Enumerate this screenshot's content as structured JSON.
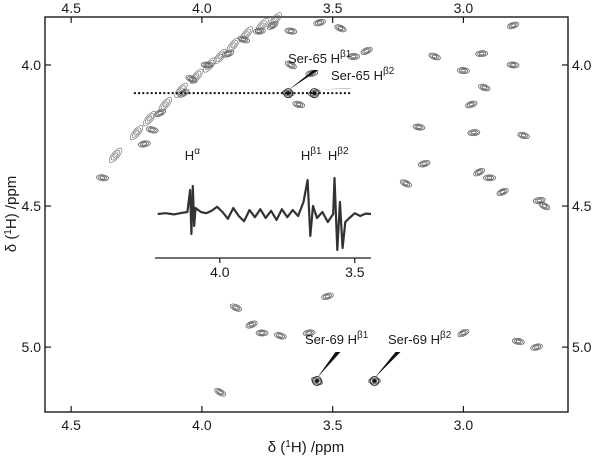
{
  "chart_data": {
    "type": "contour",
    "x_axis": {
      "label": "δ (¹H) /ppm",
      "reversed": true,
      "range": [
        4.6,
        2.6
      ],
      "ticks": [
        "4.5",
        "4.0",
        "3.5",
        "3.0"
      ],
      "tick_values": [
        4.5,
        4.0,
        3.5,
        3.0
      ]
    },
    "y_axis": {
      "label": "δ (¹H) /ppm",
      "reversed": true,
      "range": [
        3.83,
        5.23
      ],
      "ticks": [
        "4.0",
        "4.5",
        "5.0"
      ],
      "tick_values": [
        4.0,
        4.5,
        5.0
      ]
    },
    "slice_y_ppm": 4.1,
    "annotations": [
      {
        "label": "Ser-65 H",
        "sup": "β1",
        "x": 3.67,
        "y": 4.1
      },
      {
        "label": "Ser-65 H",
        "sup": "β2",
        "x": 3.57,
        "y": 4.1
      },
      {
        "label": "Ser-69 H",
        "sup": "β1",
        "x": 3.56,
        "y": 5.12
      },
      {
        "label": "Ser-69 H",
        "sup": "β2",
        "x": 3.34,
        "y": 5.12
      }
    ],
    "inset": {
      "type": "line",
      "x_ticks": [
        "4.0",
        "3.5"
      ],
      "x_tick_values": [
        4.0,
        3.5
      ],
      "x_range": [
        4.24,
        3.44
      ],
      "peak_labels": [
        {
          "label": "H",
          "sup": "α",
          "x": 4.1
        },
        {
          "label": "H",
          "sup": "β1",
          "x": 3.67
        },
        {
          "label": "H",
          "sup": "β2",
          "x": 3.57
        }
      ],
      "trace": [
        [
          4.23,
          0.0
        ],
        [
          4.2,
          0.02
        ],
        [
          4.17,
          -0.01
        ],
        [
          4.14,
          0.03
        ],
        [
          4.12,
          0.05
        ],
        [
          4.11,
          0.6
        ],
        [
          4.105,
          -0.5
        ],
        [
          4.1,
          0.7
        ],
        [
          4.095,
          -0.3
        ],
        [
          4.09,
          0.15
        ],
        [
          4.07,
          0.05
        ],
        [
          4.05,
          0.02
        ],
        [
          4.03,
          0.08
        ],
        [
          4.01,
          0.18
        ],
        [
          3.99,
          0.05
        ],
        [
          3.97,
          -0.12
        ],
        [
          3.95,
          0.15
        ],
        [
          3.93,
          -0.05
        ],
        [
          3.91,
          -0.18
        ],
        [
          3.89,
          0.1
        ],
        [
          3.87,
          -0.08
        ],
        [
          3.85,
          0.12
        ],
        [
          3.83,
          -0.1
        ],
        [
          3.81,
          0.08
        ],
        [
          3.79,
          -0.15
        ],
        [
          3.77,
          0.12
        ],
        [
          3.75,
          -0.08
        ],
        [
          3.73,
          0.1
        ],
        [
          3.71,
          -0.05
        ],
        [
          3.69,
          0.3
        ],
        [
          3.675,
          0.85
        ],
        [
          3.665,
          -0.55
        ],
        [
          3.655,
          0.2
        ],
        [
          3.64,
          -0.1
        ],
        [
          3.62,
          0.05
        ],
        [
          3.6,
          -0.2
        ],
        [
          3.58,
          0.0
        ],
        [
          3.575,
          0.9
        ],
        [
          3.565,
          -0.9
        ],
        [
          3.555,
          0.3
        ],
        [
          3.545,
          -0.85
        ],
        [
          3.535,
          -0.2
        ],
        [
          3.52,
          -0.1
        ],
        [
          3.5,
          0.02
        ],
        [
          3.48,
          -0.05
        ],
        [
          3.46,
          0.01
        ],
        [
          3.44,
          0.0
        ]
      ]
    },
    "cross_peaks": [
      [
        4.07,
        4.1
      ],
      [
        3.67,
        4.1
      ],
      [
        3.57,
        4.1
      ],
      [
        3.56,
        5.12
      ],
      [
        3.34,
        5.12
      ],
      [
        4.16,
        4.17
      ],
      [
        4.19,
        4.23
      ],
      [
        4.22,
        4.28
      ],
      [
        4.04,
        4.05
      ],
      [
        3.98,
        4.0
      ],
      [
        3.9,
        3.96
      ],
      [
        3.84,
        3.91
      ],
      [
        3.78,
        3.88
      ],
      [
        3.73,
        3.86
      ],
      [
        3.66,
        3.88
      ],
      [
        3.55,
        3.85
      ],
      [
        3.47,
        3.87
      ],
      [
        3.42,
        3.97
      ],
      [
        3.37,
        3.95
      ],
      [
        3.63,
        4.14
      ],
      [
        3.58,
        4.03
      ],
      [
        3.66,
        4.0
      ],
      [
        3.0,
        4.02
      ],
      [
        2.97,
        4.14
      ],
      [
        2.92,
        4.08
      ],
      [
        2.96,
        4.24
      ],
      [
        2.94,
        4.38
      ],
      [
        3.17,
        4.22
      ],
      [
        3.15,
        4.35
      ],
      [
        3.22,
        4.42
      ],
      [
        2.9,
        4.4
      ],
      [
        2.85,
        4.45
      ],
      [
        2.77,
        4.25
      ],
      [
        2.71,
        4.48
      ],
      [
        2.69,
        4.5
      ],
      [
        2.81,
        4.0
      ],
      [
        2.81,
        3.86
      ],
      [
        3.11,
        3.97
      ],
      [
        2.93,
        3.96
      ],
      [
        3.0,
        4.95
      ],
      [
        2.79,
        4.98
      ],
      [
        2.72,
        5.0
      ],
      [
        3.87,
        4.86
      ],
      [
        3.77,
        4.95
      ],
      [
        3.81,
        4.92
      ],
      [
        3.7,
        4.96
      ],
      [
        3.59,
        4.95
      ],
      [
        3.93,
        5.16
      ],
      [
        4.38,
        4.4
      ],
      [
        3.52,
        4.82
      ]
    ]
  }
}
